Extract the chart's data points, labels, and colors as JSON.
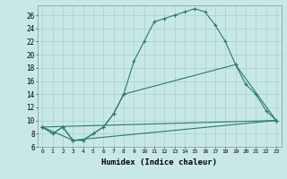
{
  "xlabel": "Humidex (Indice chaleur)",
  "bg_color": "#c8e8e8",
  "line_color": "#2a7a6a",
  "grid_color": "#a8cece",
  "xlim": [
    -0.5,
    23.5
  ],
  "ylim": [
    6,
    27.5
  ],
  "xticks": [
    0,
    1,
    2,
    3,
    4,
    5,
    6,
    7,
    8,
    9,
    10,
    11,
    12,
    13,
    14,
    15,
    16,
    17,
    18,
    19,
    20,
    21,
    22,
    23
  ],
  "yticks": [
    6,
    8,
    10,
    12,
    14,
    16,
    18,
    20,
    22,
    24,
    26
  ],
  "lines": [
    {
      "x": [
        0,
        1,
        2,
        3,
        4,
        5,
        6,
        7,
        8,
        9,
        10,
        11,
        12,
        13,
        14,
        15,
        16,
        17,
        18,
        19,
        23
      ],
      "y": [
        9,
        8,
        9,
        7,
        7,
        8,
        9,
        11,
        14,
        19,
        22,
        25,
        25.5,
        26,
        26.5,
        27,
        26.5,
        24.5,
        22,
        18.5,
        10
      ]
    },
    {
      "x": [
        0,
        1,
        2,
        3,
        4,
        5,
        6,
        7,
        8,
        19,
        20,
        21,
        22,
        23
      ],
      "y": [
        9,
        8,
        9,
        7,
        7,
        8,
        9,
        11,
        14,
        18.5,
        15.5,
        14,
        11.5,
        10
      ]
    },
    {
      "x": [
        0,
        23
      ],
      "y": [
        9,
        10
      ]
    },
    {
      "x": [
        0,
        3,
        23
      ],
      "y": [
        9,
        7,
        10
      ]
    }
  ]
}
